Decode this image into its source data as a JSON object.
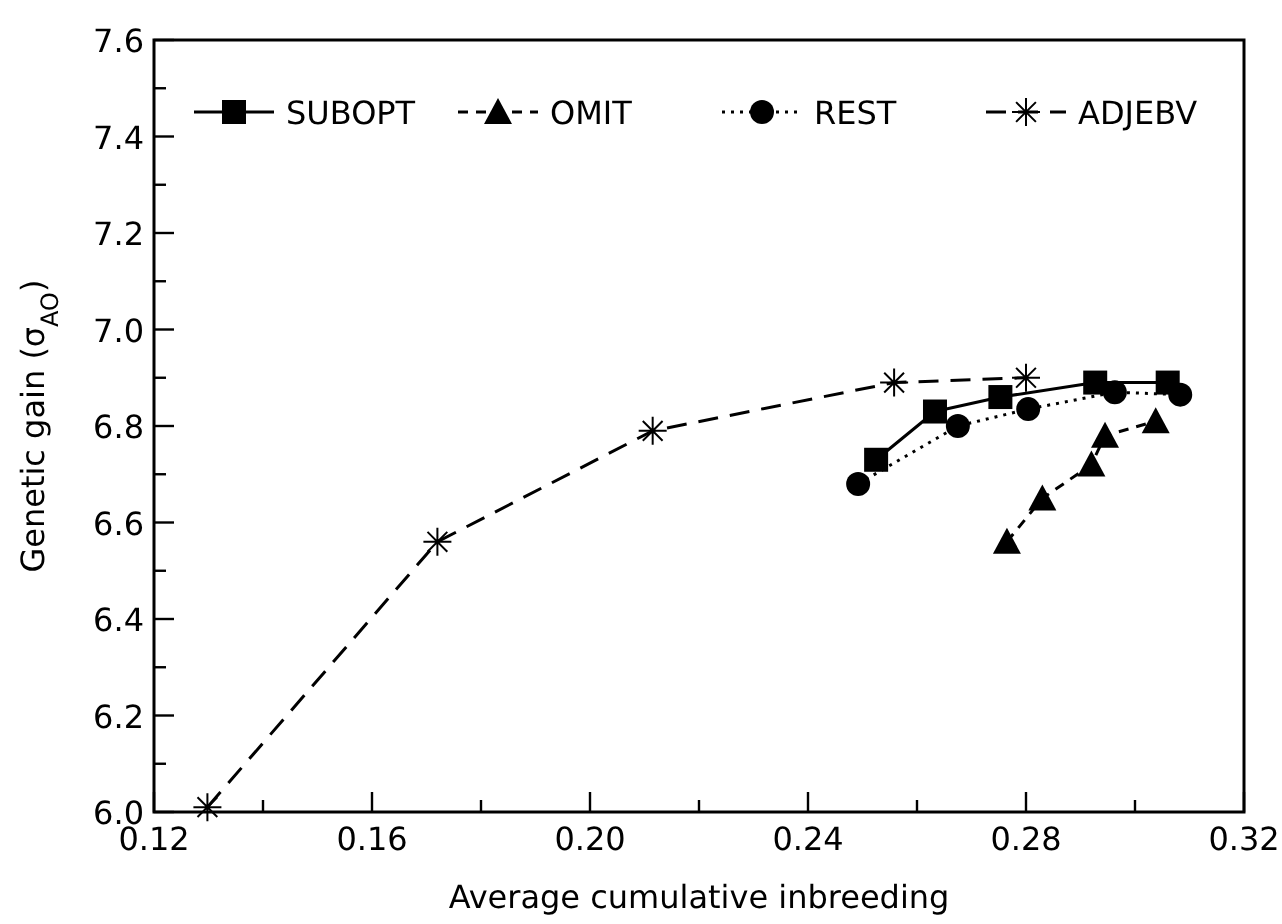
{
  "chart_data": {
    "type": "line",
    "xlabel": "Average cumulative inbreeding",
    "ylabel": "Genetic gain (σ$_{AO}$)",
    "xlim": [
      0.12,
      0.32
    ],
    "ylim": [
      6.0,
      7.6
    ],
    "xticks": [
      {
        "value": 0.12,
        "label": "0.12"
      },
      {
        "value": 0.14,
        "label": null
      },
      {
        "value": 0.16,
        "label": "0.16"
      },
      {
        "value": 0.18,
        "label": null
      },
      {
        "value": 0.2,
        "label": "0.20"
      },
      {
        "value": 0.22,
        "label": null
      },
      {
        "value": 0.24,
        "label": "0.24"
      },
      {
        "value": 0.26,
        "label": null
      },
      {
        "value": 0.28,
        "label": "0.28"
      },
      {
        "value": 0.3,
        "label": null
      },
      {
        "value": 0.32,
        "label": "0.32"
      }
    ],
    "yticks": [
      {
        "value": 6.0,
        "label": "6.0"
      },
      {
        "value": 6.1,
        "label": null
      },
      {
        "value": 6.2,
        "label": "6.2"
      },
      {
        "value": 6.3,
        "label": null
      },
      {
        "value": 6.4,
        "label": "6.4"
      },
      {
        "value": 6.5,
        "label": null
      },
      {
        "value": 6.6,
        "label": "6.6"
      },
      {
        "value": 6.7,
        "label": null
      },
      {
        "value": 6.8,
        "label": "6.8"
      },
      {
        "value": 6.9,
        "label": null
      },
      {
        "value": 7.0,
        "label": "7.0"
      },
      {
        "value": 7.1,
        "label": null
      },
      {
        "value": 7.2,
        "label": "7.2"
      },
      {
        "value": 7.3,
        "label": null
      },
      {
        "value": 7.4,
        "label": "7.4"
      },
      {
        "value": 7.5,
        "label": null
      },
      {
        "value": 7.6,
        "label": "7.6"
      }
    ],
    "grid": false,
    "legend": "top",
    "series": [
      {
        "name": "SUBOPT",
        "color": "#000000",
        "marker": "square",
        "line_style": "solid",
        "x": [
          0.2525,
          0.2633,
          0.2753,
          0.2927,
          0.306
        ],
        "values": [
          6.73,
          6.83,
          6.86,
          6.89,
          6.89
        ]
      },
      {
        "name": "OMIT",
        "color": "#000000",
        "marker": "triangle",
        "line_style": "dashed",
        "x": [
          0.2765,
          0.283,
          0.292,
          0.2945,
          0.3038
        ],
        "values": [
          6.56,
          6.65,
          6.72,
          6.78,
          6.81
        ]
      },
      {
        "name": "REST",
        "color": "#000000",
        "marker": "circle",
        "line_style": "dotted",
        "x": [
          0.2492,
          0.2675,
          0.2804,
          0.2963,
          0.3083
        ],
        "values": [
          6.68,
          6.8,
          6.835,
          6.87,
          6.865
        ]
      },
      {
        "name": "ADJEBV",
        "color": "#000000",
        "marker": "cross",
        "line_style": "longdash",
        "x": [
          0.1298,
          0.172,
          0.2115,
          0.2558,
          0.28
        ],
        "values": [
          6.01,
          6.56,
          6.79,
          6.89,
          6.9
        ]
      }
    ]
  }
}
